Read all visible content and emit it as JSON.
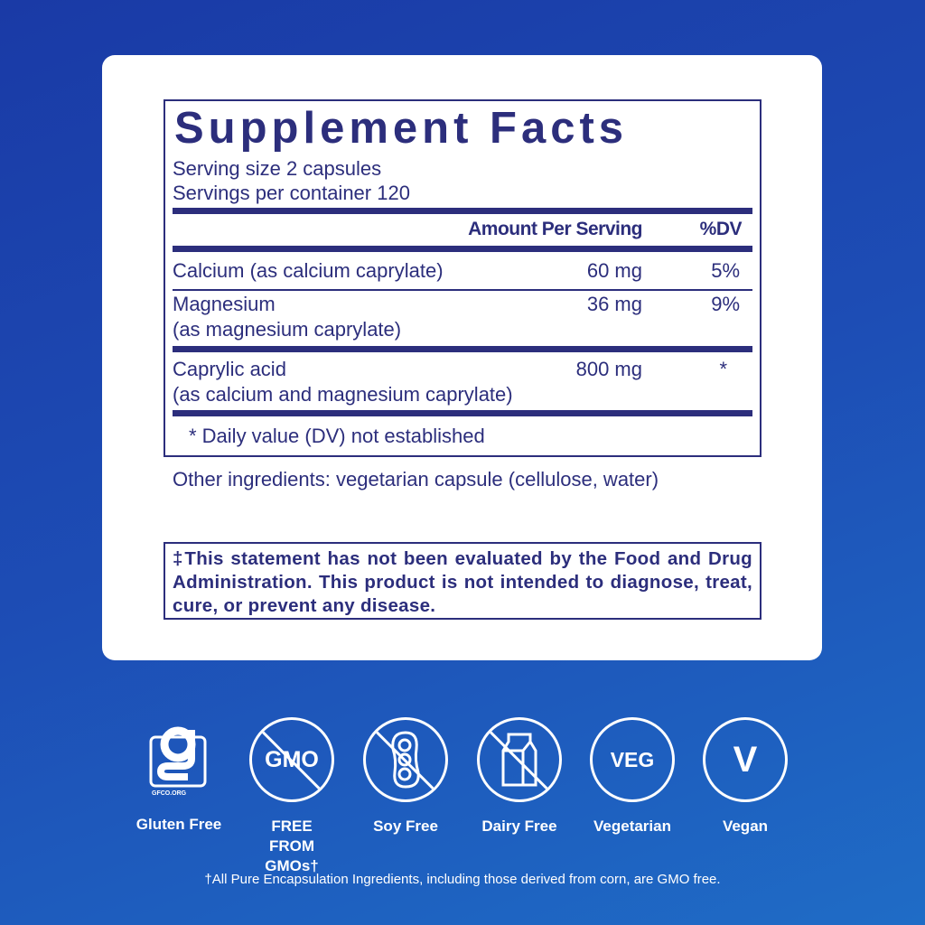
{
  "facts": {
    "title": "Supplement Facts",
    "serving_size": "Serving size  2 capsules",
    "servings_per_container": "Servings per container  120",
    "header_amount": "Amount Per Serving",
    "header_dv": "%DV",
    "rows": [
      {
        "name": "Calcium (as calcium caprylate)",
        "sub": "",
        "amount": "60 mg",
        "dv": "5%"
      },
      {
        "name": "Magnesium",
        "sub": "(as magnesium caprylate)",
        "amount": "36 mg",
        "dv": "9%"
      },
      {
        "name": "Caprylic acid",
        "sub": "(as calcium and magnesium caprylate)",
        "amount": "800 mg",
        "dv": "*"
      }
    ],
    "footnote": "* Daily value (DV) not established"
  },
  "other_ingredients": "Other ingredients: vegetarian capsule (cellulose, water)",
  "disclaimer": "‡This statement has not been evaluated by the Food and Drug Administration. This product is not intended to diagnose, treat, cure, or prevent any disease.",
  "badges": [
    {
      "icon": "gluten-free-gfco-icon",
      "label": "Gluten Free",
      "logo_text": "GFCO.ORG"
    },
    {
      "icon": "no-gmo-icon",
      "label": "FREE FROM GMOs†",
      "text": "GMO"
    },
    {
      "icon": "no-soy-icon",
      "label": "Soy Free"
    },
    {
      "icon": "no-dairy-icon",
      "label": "Dairy Free"
    },
    {
      "icon": "veg-icon",
      "label": "Vegetarian",
      "text": "VEG"
    },
    {
      "icon": "vegan-icon",
      "label": "Vegan",
      "text": "V"
    }
  ],
  "gmo_footnote": "†All Pure Encapsulation Ingredients, including those derived from corn, are GMO free.",
  "colors": {
    "navy": "#2c2e7c",
    "background": "#1d4db5"
  }
}
